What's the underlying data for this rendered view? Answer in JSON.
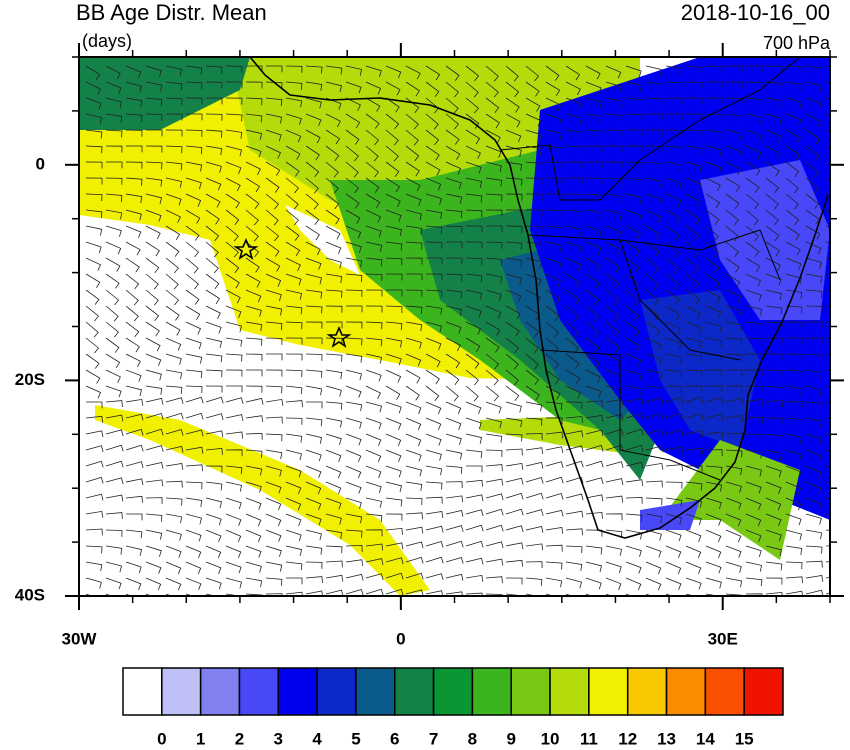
{
  "header": {
    "title": "BB Age Distr. Mean",
    "units": "(days)",
    "time": "2018-10-16_00",
    "level": "700 hPa"
  },
  "map": {
    "lon_range": [
      -30,
      40
    ],
    "lat_range": [
      -40,
      10
    ],
    "lon_ticks": [
      {
        "value": -30,
        "label": "30W"
      },
      {
        "value": 0,
        "label": "0"
      },
      {
        "value": 30,
        "label": "30E"
      }
    ],
    "lat_ticks": [
      {
        "value": 0,
        "label": "0"
      },
      {
        "value": -20,
        "label": "20S"
      },
      {
        "value": -40,
        "label": "40S"
      }
    ],
    "lon_minor_ticks": [
      -25,
      -20,
      -15,
      -10,
      -5,
      5,
      10,
      15,
      20,
      25,
      35,
      40
    ],
    "lat_minor_ticks": [
      -35,
      -30,
      -25,
      -15,
      -10,
      -5,
      5,
      10
    ]
  },
  "colorbar": {
    "colors": [
      "#ffffff",
      "#c0c0f8",
      "#8080f0",
      "#4848f8",
      "#0000f0",
      "#0c28c8",
      "#0a5a8c",
      "#148248",
      "#0a9632",
      "#3cb41e",
      "#78c814",
      "#b4dc0a",
      "#f0f000",
      "#fac800",
      "#fa8c00",
      "#fa5000",
      "#f01400"
    ],
    "labels": [
      0,
      1,
      2,
      3,
      4,
      5,
      6,
      7,
      8,
      9,
      10,
      11,
      12,
      13,
      14,
      15
    ]
  }
}
